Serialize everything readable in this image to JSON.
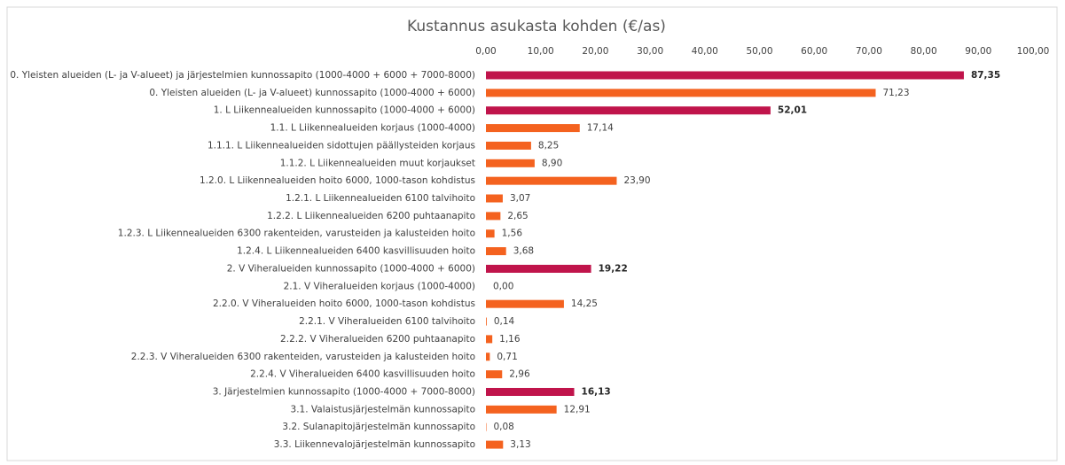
{
  "chart_data": {
    "type": "bar",
    "orientation": "horizontal",
    "title": "Kustannus asukasta kohden (€/as)",
    "categories": [
      "0. Yleisten alueiden (L- ja V-alueet) ja järjestelmien kunnossapito (1000-4000 + 6000 + 7000-8000)",
      "0. Yleisten alueiden (L- ja V-alueet) kunnossapito (1000-4000 + 6000)",
      "1. L Liikennealueiden kunnossapito (1000-4000 + 6000)",
      "1.1. L Liikennealueiden korjaus (1000-4000)",
      "1.1.1. L Liikennealueiden sidottujen päällysteiden korjaus",
      "1.1.2. L Liikennealueiden muut korjaukset",
      "1.2.0. L Liikennealueiden hoito 6000, 1000-tason kohdistus",
      "1.2.1. L Liikennealueiden 6100 talvihoito",
      "1.2.2. L Liikennealueiden 6200 puhtaanapito",
      "1.2.3. L Liikennealueiden 6300 rakenteiden, varusteiden ja kalusteiden hoito",
      "1.2.4. L Liikennealueiden 6400 kasvillisuuden hoito",
      "2. V Viheralueiden kunnossapito (1000-4000 + 6000)",
      "2.1. V Viheralueiden korjaus (1000-4000)",
      "2.2.0. V Viheralueiden hoito 6000, 1000-tason kohdistus",
      "2.2.1. V Viheralueiden 6100 talvihoito",
      "2.2.2. V Viheralueiden 6200 puhtaanapito",
      "2.2.3. V Viheralueiden 6300 rakenteiden, varusteiden ja kalusteiden hoito",
      "2.2.4. V Viheralueiden 6400 kasvillisuuden hoito",
      "3. Järjestelmien kunnossapito (1000-4000 + 7000-8000)",
      "3.1. Valaistusjärjestelmän kunnossapito",
      "3.2. Sulanapitojärjestelmän kunnossapito",
      "3.3. Liikennevalojärjestelmän kunnossapito"
    ],
    "values": [
      87.35,
      71.23,
      52.01,
      17.14,
      8.25,
      8.9,
      23.9,
      3.07,
      2.65,
      1.56,
      3.68,
      19.22,
      0.0,
      14.25,
      0.14,
      1.16,
      0.71,
      2.96,
      16.13,
      12.91,
      0.08,
      3.13
    ],
    "value_labels": [
      "87,35",
      "71,23",
      "52,01",
      "17,14",
      "8,25",
      "8,90",
      "23,90",
      "3,07",
      "2,65",
      "1,56",
      "3,68",
      "19,22",
      "0,00",
      "14,25",
      "0,14",
      "1,16",
      "0,71",
      "2,96",
      "16,13",
      "12,91",
      "0,08",
      "3,13"
    ],
    "colors": [
      "#c0144b",
      "#f4621f",
      "#c0144b",
      "#f4621f",
      "#f4621f",
      "#f4621f",
      "#f4621f",
      "#f4621f",
      "#f4621f",
      "#f4621f",
      "#f4621f",
      "#c0144b",
      "#f4621f",
      "#f4621f",
      "#f4621f",
      "#f4621f",
      "#f4621f",
      "#f4621f",
      "#c0144b",
      "#f4621f",
      "#f4621f",
      "#f4621f"
    ],
    "label_bold": [
      true,
      false,
      true,
      false,
      false,
      false,
      false,
      false,
      false,
      false,
      false,
      true,
      false,
      false,
      false,
      false,
      false,
      false,
      true,
      false,
      false,
      false
    ],
    "xlim": [
      0,
      100
    ],
    "xticks": [
      {
        "value": 0,
        "label": "0,00"
      },
      {
        "value": 10,
        "label": "10,00"
      },
      {
        "value": 20,
        "label": "20,00"
      },
      {
        "value": 30,
        "label": "30,00"
      },
      {
        "value": 40,
        "label": "40,00"
      },
      {
        "value": 50,
        "label": "50,00"
      },
      {
        "value": 60,
        "label": "60,00"
      },
      {
        "value": 70,
        "label": "70,00"
      },
      {
        "value": 80,
        "label": "80,00"
      },
      {
        "value": 90,
        "label": "90,00"
      },
      {
        "value": 100,
        "label": "100,00"
      }
    ],
    "grid": false
  }
}
